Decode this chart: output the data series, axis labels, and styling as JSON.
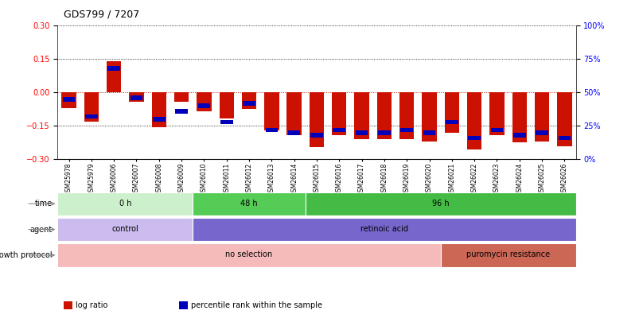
{
  "title": "GDS799 / 7207",
  "samples": [
    "GSM25978",
    "GSM25979",
    "GSM26006",
    "GSM26007",
    "GSM26008",
    "GSM26009",
    "GSM26010",
    "GSM26011",
    "GSM26012",
    "GSM26013",
    "GSM26014",
    "GSM26015",
    "GSM26016",
    "GSM26017",
    "GSM26018",
    "GSM26019",
    "GSM26020",
    "GSM26021",
    "GSM26022",
    "GSM26023",
    "GSM26024",
    "GSM26025",
    "GSM26026"
  ],
  "log_ratio": [
    -0.07,
    -0.13,
    0.14,
    -0.04,
    -0.155,
    -0.04,
    -0.085,
    -0.115,
    -0.075,
    -0.17,
    -0.19,
    -0.245,
    -0.19,
    -0.21,
    -0.21,
    -0.21,
    -0.22,
    -0.18,
    -0.255,
    -0.19,
    -0.225,
    -0.22,
    -0.24
  ],
  "percentile": [
    45,
    32,
    68,
    46,
    30,
    36,
    40,
    28,
    42,
    22,
    20,
    18,
    22,
    20,
    20,
    22,
    20,
    28,
    16,
    22,
    18,
    20,
    16
  ],
  "ylim_left": [
    -0.3,
    0.3
  ],
  "ylim_right": [
    0,
    100
  ],
  "yticks_left": [
    -0.3,
    -0.15,
    0,
    0.15,
    0.3
  ],
  "yticks_right": [
    0,
    25,
    50,
    75,
    100
  ],
  "bar_color": "#cc1100",
  "marker_color": "#0000bb",
  "dotted_line_color": "#000000",
  "zero_line_color": "#cc1100",
  "time_groups": [
    {
      "label": "0 h",
      "start": 0,
      "end": 6,
      "color": "#ccf0cc"
    },
    {
      "label": "48 h",
      "start": 6,
      "end": 11,
      "color": "#55cc55"
    },
    {
      "label": "96 h",
      "start": 11,
      "end": 23,
      "color": "#44bb44"
    }
  ],
  "agent_groups": [
    {
      "label": "control",
      "start": 0,
      "end": 6,
      "color": "#ccbbee"
    },
    {
      "label": "retinoic acid",
      "start": 6,
      "end": 23,
      "color": "#7766cc"
    }
  ],
  "growth_groups": [
    {
      "label": "no selection",
      "start": 0,
      "end": 17,
      "color": "#f5bbbb"
    },
    {
      "label": "puromycin resistance",
      "start": 17,
      "end": 23,
      "color": "#cc6655"
    }
  ],
  "row_labels": [
    "time",
    "agent",
    "growth protocol"
  ],
  "legend_items": [
    {
      "label": "log ratio",
      "color": "#cc1100"
    },
    {
      "label": "percentile rank within the sample",
      "color": "#0000bb"
    }
  ]
}
